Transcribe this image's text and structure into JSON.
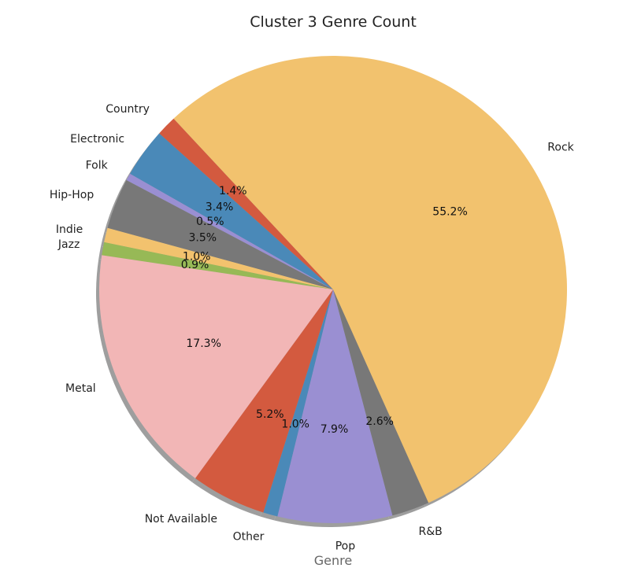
{
  "chart_data": {
    "type": "pie",
    "title": "Cluster 3 Genre Count",
    "xlabel": "Genre",
    "shadow": true,
    "slices": [
      {
        "label": "Country",
        "percent": 1.4,
        "pct_label": "1.4%",
        "color": "#D35A3F"
      },
      {
        "label": "Electronic",
        "percent": 3.4,
        "pct_label": "3.4%",
        "color": "#4A89B8"
      },
      {
        "label": "Folk",
        "percent": 0.5,
        "pct_label": "0.5%",
        "color": "#9A8FD2"
      },
      {
        "label": "Hip-Hop",
        "percent": 3.5,
        "pct_label": "3.5%",
        "color": "#787878"
      },
      {
        "label": "Indie",
        "percent": 1.0,
        "pct_label": "1.0%",
        "color": "#F2C26E"
      },
      {
        "label": "Jazz",
        "percent": 0.9,
        "pct_label": "0.9%",
        "color": "#97B956"
      },
      {
        "label": "Metal",
        "percent": 17.3,
        "pct_label": "17.3%",
        "color": "#F2B6B6"
      },
      {
        "label": "Not Available",
        "percent": 5.2,
        "pct_label": "5.2%",
        "color": "#D35A3F"
      },
      {
        "label": "Other",
        "percent": 1.0,
        "pct_label": "1.0%",
        "color": "#4A89B8"
      },
      {
        "label": "Pop",
        "percent": 7.9,
        "pct_label": "7.9%",
        "color": "#9A8FD2"
      },
      {
        "label": "R&B",
        "percent": 2.6,
        "pct_label": "2.6%",
        "color": "#787878"
      },
      {
        "label": "Rock",
        "percent": 55.2,
        "pct_label": "55.2%",
        "color": "#F2C26E"
      }
    ]
  }
}
